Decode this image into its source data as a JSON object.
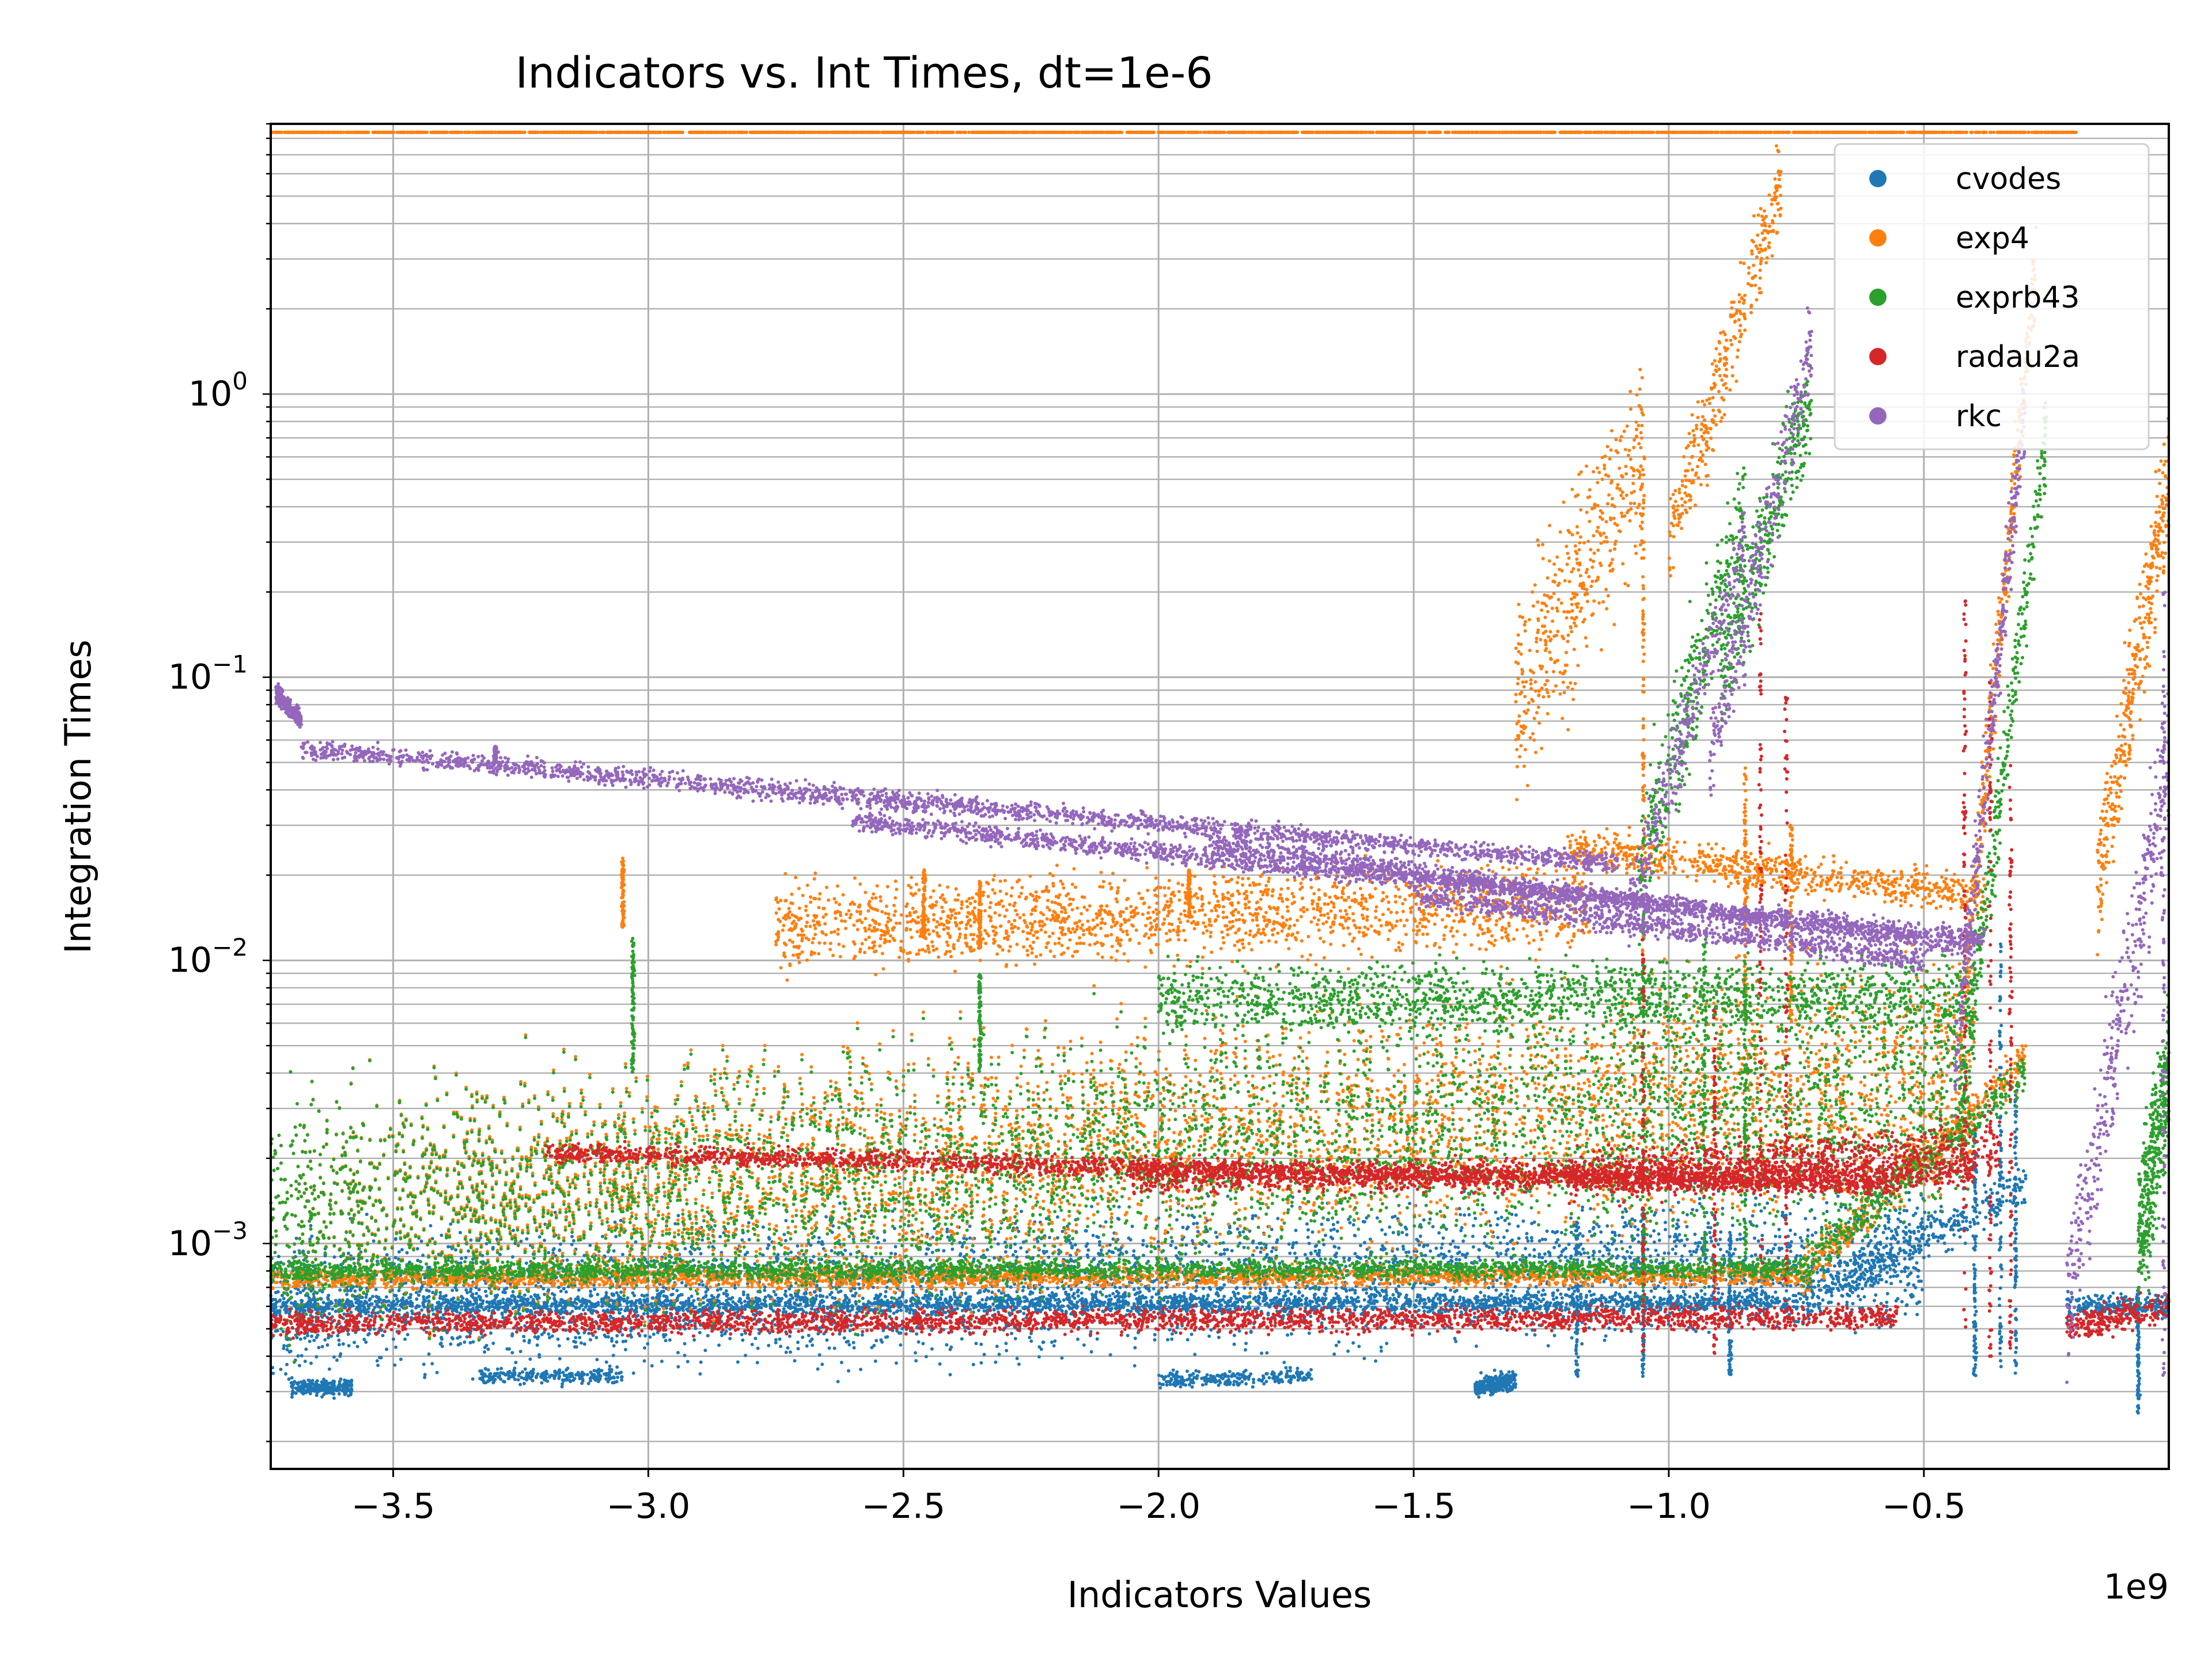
{
  "chart_data": {
    "type": "scatter",
    "title": "Indicators vs. Int Times, dt=1e-6",
    "xlabel": "Indicators Values",
    "ylabel": "Integration Times",
    "x_offset_label": "1e9",
    "x_scale": 1000000000,
    "yscale": "log",
    "xlim": [
      -3740000000,
      -20000000
    ],
    "ylim": [
      0.00016,
      9
    ],
    "grid": true,
    "legend_position": "top-right",
    "x_ticks": [
      {
        "value": -3500000000,
        "label": "−3.5"
      },
      {
        "value": -3000000000,
        "label": "−3.0"
      },
      {
        "value": -2500000000,
        "label": "−2.5"
      },
      {
        "value": -2000000000,
        "label": "−2.0"
      },
      {
        "value": -1500000000,
        "label": "−1.5"
      },
      {
        "value": -1000000000,
        "label": "−1.0"
      },
      {
        "value": -500000000,
        "label": "−0.5"
      }
    ],
    "y_ticks": [
      {
        "value": 0.001,
        "base": "10",
        "exp": "−3"
      },
      {
        "value": 0.01,
        "base": "10",
        "exp": "−2"
      },
      {
        "value": 0.1,
        "base": "10",
        "exp": "−1"
      },
      {
        "value": 1,
        "base": "10",
        "exp": "0"
      }
    ],
    "series": [
      {
        "name": "cvodes",
        "color": "#1f77b4",
        "bands": [
          {
            "x": [
              -3740000000,
              -740000000
            ],
            "y": [
              0.0006,
              0.00062
            ],
            "spread": 0.05
          },
          {
            "x": [
              -740000000,
              -300000000
            ],
            "y": [
              0.00062,
              0.0016
            ],
            "spread": 0.12
          },
          {
            "x": [
              -3700000000,
              -3580000000
            ],
            "y": [
              0.00031,
              0.00031
            ],
            "spread": 0.04
          },
          {
            "x": [
              -3330000000,
              -3050000000
            ],
            "y": [
              0.00034,
              0.00034
            ],
            "spread": 0.04
          },
          {
            "x": [
              -2000000000,
              -1700000000
            ],
            "y": [
              0.00033,
              0.00034
            ],
            "spread": 0.04
          },
          {
            "x": [
              -1380000000,
              -1300000000
            ],
            "y": [
              0.00031,
              0.00033
            ],
            "spread": 0.05
          },
          {
            "x": [
              -3740000000,
              -500000000
            ],
            "y": [
              0.0006,
              0.0009
            ],
            "spread": 0.35
          },
          {
            "x": [
              -220000000,
              -20000000
            ],
            "y": [
              0.0006,
              0.0006
            ],
            "spread": 0.06
          }
        ],
        "spikes": [
          {
            "x": -1180000000,
            "y": [
              0.00034,
              0.0012
            ]
          },
          {
            "x": -1050000000,
            "y": [
              0.00034,
              0.0014
            ]
          },
          {
            "x": -880000000,
            "y": [
              0.00034,
              0.0011
            ]
          },
          {
            "x": -400000000,
            "y": [
              0.00034,
              0.0025
            ]
          },
          {
            "x": -350000000,
            "y": [
              0.00034,
              0.012
            ]
          },
          {
            "x": -320000000,
            "y": [
              0.00034,
              0.0035
            ]
          },
          {
            "x": -80000000,
            "y": [
              0.00025,
              0.0007
            ]
          }
        ]
      },
      {
        "name": "exp4",
        "color": "#ff7f0e",
        "bands": [
          {
            "x": [
              -3740000000,
              -740000000
            ],
            "y": [
              0.00075,
              0.00077
            ],
            "spread": 0.05
          },
          {
            "x": [
              -740000000,
              -300000000
            ],
            "y": [
              0.00077,
              0.0045
            ],
            "spread": 0.12
          },
          {
            "x": [
              -2750000000,
              -1150000000
            ],
            "y": [
              0.013,
              0.016
            ],
            "spread": 0.22
          },
          {
            "x": [
              -1200000000,
              -380000000
            ],
            "y": [
              0.025,
              0.017
            ],
            "spread": 0.1
          },
          {
            "x": [
              -3740000000,
              -400000000
            ],
            "y": [
              0.0012,
              0.004
            ],
            "spread": 0.6
          },
          {
            "x": [
              -1300000000,
              -1050000000
            ],
            "y": [
              0.08,
              0.6
            ],
            "spread": 0.5
          },
          {
            "x": [
              -1000000000,
              -780000000
            ],
            "y": [
              0.3,
              5.5
            ],
            "spread": 0.25
          },
          {
            "x": [
              -430000000,
              -280000000
            ],
            "y": [
              0.005,
              3.0
            ],
            "spread": 0.25
          },
          {
            "x": [
              -160000000,
              -20000000
            ],
            "y": [
              0.018,
              0.5
            ],
            "spread": 0.35
          },
          {
            "x": [
              -3740000000,
              -200000000
            ],
            "y": [
              8.4,
              8.4
            ],
            "spread": 0.0
          }
        ],
        "spikes": [
          {
            "x": -3050000000,
            "y": [
              0.013,
              0.023
            ]
          },
          {
            "x": -2460000000,
            "y": [
              0.012,
              0.021
            ]
          },
          {
            "x": -2350000000,
            "y": [
              0.011,
              0.019
            ]
          },
          {
            "x": -1940000000,
            "y": [
              0.014,
              0.021
            ]
          },
          {
            "x": -1050000000,
            "y": [
              0.01,
              0.6
            ]
          },
          {
            "x": -850000000,
            "y": [
              0.006,
              0.05
            ]
          },
          {
            "x": -760000000,
            "y": [
              0.006,
              0.03
            ]
          }
        ]
      },
      {
        "name": "exprb43",
        "color": "#2ca02c",
        "bands": [
          {
            "x": [
              -3740000000,
              -740000000
            ],
            "y": [
              0.0008,
              0.00082
            ],
            "spread": 0.05
          },
          {
            "x": [
              -740000000,
              -300000000
            ],
            "y": [
              0.00082,
              0.004
            ],
            "spread": 0.12
          },
          {
            "x": [
              -2000000000,
              -400000000
            ],
            "y": [
              0.0072,
              0.0075
            ],
            "spread": 0.18
          },
          {
            "x": [
              -3740000000,
              -400000000
            ],
            "y": [
              0.0012,
              0.0035
            ],
            "spread": 0.6
          },
          {
            "x": [
              -1060000000,
              -850000000
            ],
            "y": [
              0.02,
              0.4
            ],
            "spread": 0.35
          },
          {
            "x": [
              -900000000,
              -720000000
            ],
            "y": [
              0.1,
              1.0
            ],
            "spread": 0.3
          },
          {
            "x": [
              -430000000,
              -260000000
            ],
            "y": [
              0.003,
              0.7
            ],
            "spread": 0.25
          },
          {
            "x": [
              -80000000,
              -20000000
            ],
            "y": [
              0.001,
              0.004
            ],
            "spread": 0.4
          }
        ],
        "spikes": [
          {
            "x": -3030000000,
            "y": [
              0.004,
              0.012
            ]
          },
          {
            "x": -2350000000,
            "y": [
              0.004,
              0.009
            ]
          },
          {
            "x": -1050000000,
            "y": [
              0.0006,
              0.02
            ]
          },
          {
            "x": -930000000,
            "y": [
              0.0007,
              0.012
            ]
          },
          {
            "x": -850000000,
            "y": [
              0.0008,
              0.01
            ]
          }
        ]
      },
      {
        "name": "radau2a",
        "color": "#d62728",
        "bands": [
          {
            "x": [
              -3740000000,
              -550000000
            ],
            "y": [
              0.00052,
              0.00055
            ],
            "spread": 0.06
          },
          {
            "x": [
              -3200000000,
              -550000000
            ],
            "y": [
              0.0021,
              0.0016
            ],
            "spread": 0.05
          },
          {
            "x": [
              -2050000000,
              -400000000
            ],
            "y": [
              0.0017,
              0.0018
            ],
            "spread": 0.08
          },
          {
            "x": [
              -1200000000,
              -350000000
            ],
            "y": [
              0.0017,
              0.0022
            ],
            "spread": 0.14
          },
          {
            "x": [
              -220000000,
              -20000000
            ],
            "y": [
              0.0005,
              0.0006
            ],
            "spread": 0.08
          }
        ],
        "spikes": [
          {
            "x": -1050000000,
            "y": [
              0.0004,
              0.012
            ]
          },
          {
            "x": -910000000,
            "y": [
              0.0004,
              0.007
            ]
          },
          {
            "x": -820000000,
            "y": [
              0.0008,
              0.18
            ]
          },
          {
            "x": -770000000,
            "y": [
              0.0005,
              0.09
            ]
          },
          {
            "x": -420000000,
            "y": [
              0.0005,
              0.2
            ]
          },
          {
            "x": -370000000,
            "y": [
              0.0004,
              0.1
            ]
          },
          {
            "x": -330000000,
            "y": [
              0.0004,
              0.05
            ]
          }
        ]
      },
      {
        "name": "rkc",
        "color": "#9467bd",
        "bands": [
          {
            "x": [
              -3730000000,
              -3680000000
            ],
            "y": [
              0.088,
              0.07
            ],
            "spread": 0.05
          },
          {
            "x": [
              -3680000000,
              -1100000000
            ],
            "y": [
              0.056,
              0.022
            ],
            "spread": 0.05
          },
          {
            "x": [
              -2600000000,
              -380000000
            ],
            "y": [
              0.031,
              0.012
            ],
            "spread": 0.05
          },
          {
            "x": [
              -1900000000,
              -400000000
            ],
            "y": [
              0.026,
              0.011
            ],
            "spread": 0.05
          },
          {
            "x": [
              -1500000000,
              -500000000
            ],
            "y": [
              0.017,
              0.01
            ],
            "spread": 0.06
          },
          {
            "x": [
              -1080000000,
              -850000000
            ],
            "y": [
              0.015,
              0.3
            ],
            "spread": 0.2
          },
          {
            "x": [
              -920000000,
              -720000000
            ],
            "y": [
              0.05,
              1.5
            ],
            "spread": 0.25
          },
          {
            "x": [
              -440000000,
              -300000000
            ],
            "y": [
              0.004,
              1.0
            ],
            "spread": 0.25
          },
          {
            "x": [
              -220000000,
              -20000000
            ],
            "y": [
              0.0006,
              0.05
            ],
            "spread": 0.4
          }
        ],
        "spikes": [
          {
            "x": -3300000000,
            "y": [
              0.05,
              0.057
            ]
          },
          {
            "x": -30000000,
            "y": [
              0.0003,
              0.2
            ]
          }
        ]
      }
    ]
  }
}
